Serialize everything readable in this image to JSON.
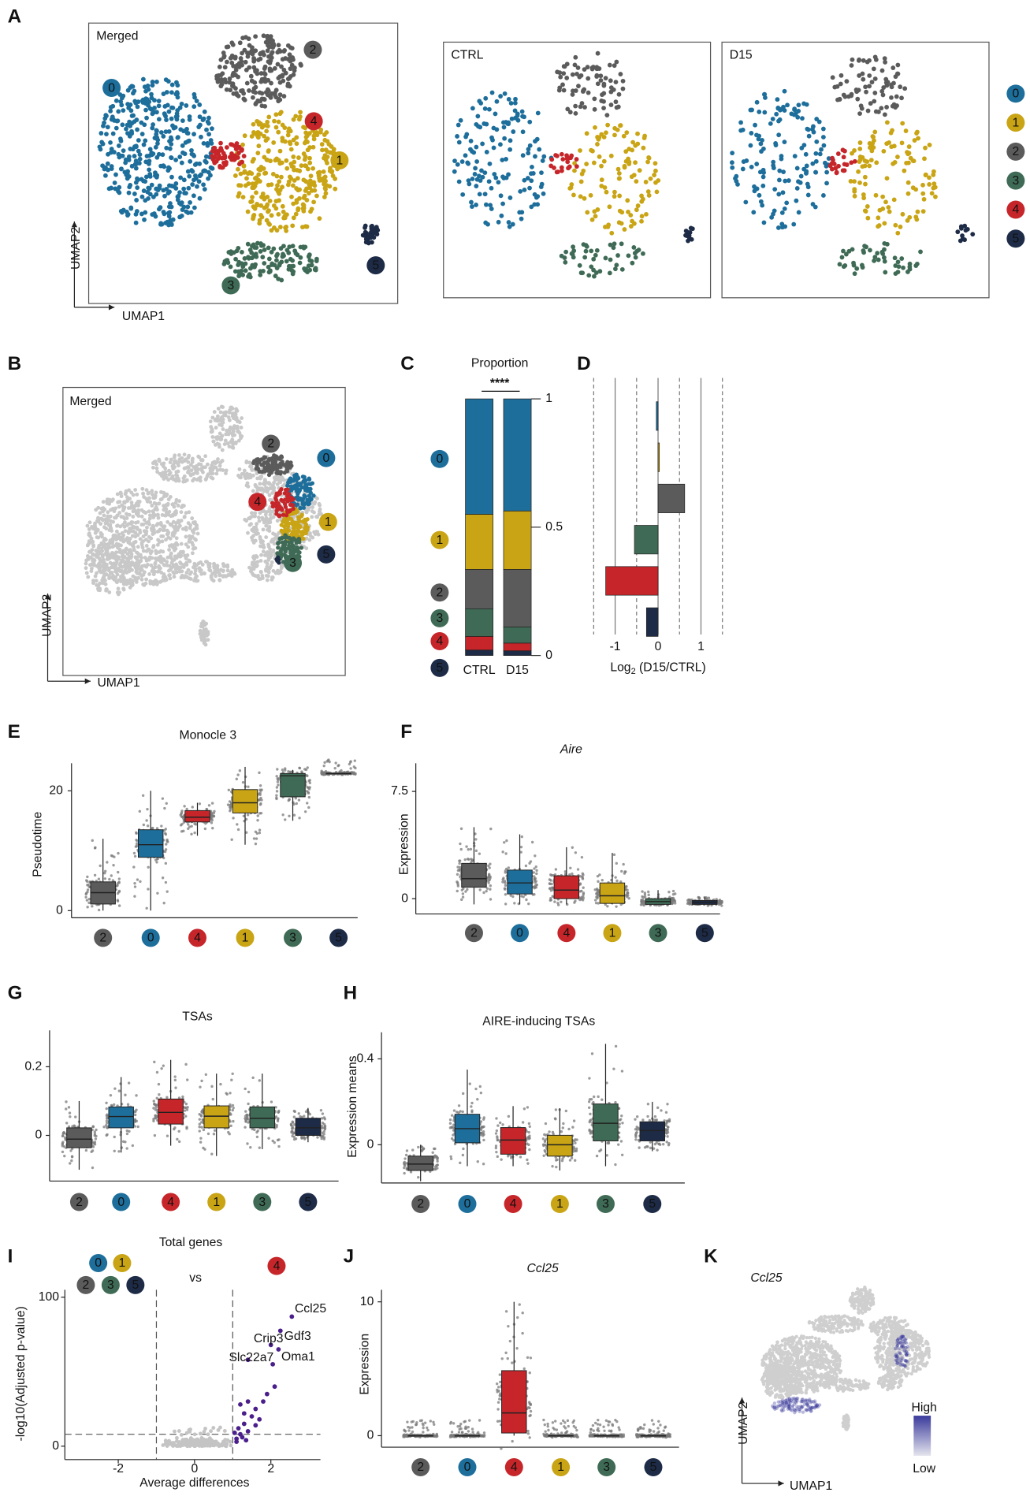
{
  "clusters": {
    "names": [
      "0",
      "1",
      "2",
      "3",
      "4",
      "5"
    ],
    "colors": [
      "#1d6e9b",
      "#c9a414",
      "#5b5b5b",
      "#3f6b56",
      "#c6262a",
      "#1d2b47"
    ]
  },
  "chart_data": [
    {
      "type": "umap",
      "panel": "A",
      "xlabel": "UMAP1",
      "ylabel": "UMAP2",
      "views": [
        {
          "title": "Merged",
          "cluster_labels": [
            "0",
            "2",
            "4",
            "1",
            "3",
            "5"
          ]
        },
        {
          "title": "CTRL"
        },
        {
          "title": "D15"
        }
      ]
    },
    {
      "type": "umap",
      "panel": "B",
      "xlabel": "UMAP1",
      "ylabel": "UMAP2",
      "views": [
        {
          "title": "Merged",
          "cluster_labels": [
            "2",
            "0",
            "4",
            "1",
            "3",
            "5"
          ]
        }
      ]
    },
    {
      "type": "stacked_bar",
      "panel": "C",
      "title": "Proportion",
      "annotation": "****",
      "categories": [
        "CTRL",
        "D15"
      ],
      "series": [
        {
          "name": "0",
          "values": [
            0.45,
            0.437
          ]
        },
        {
          "name": "1",
          "values": [
            0.215,
            0.228
          ]
        },
        {
          "name": "2",
          "values": [
            0.153,
            0.224
          ]
        },
        {
          "name": "3",
          "values": [
            0.108,
            0.063
          ]
        },
        {
          "name": "4",
          "values": [
            0.053,
            0.03
          ]
        },
        {
          "name": "5",
          "values": [
            0.021,
            0.018
          ]
        }
      ],
      "ylim": [
        0,
        1
      ],
      "yticks": [
        0,
        0.5,
        1
      ]
    },
    {
      "type": "hbar",
      "panel": "D",
      "values": [
        -0.04,
        0.03,
        0.62,
        -0.55,
        -1.22,
        -0.27
      ],
      "colors": [
        "#1d6e9b",
        "#c9a414",
        "#5b5b5b",
        "#3f6b56",
        "#c6262a",
        "#1d2b47"
      ],
      "xlim": [
        -1.5,
        1.5
      ],
      "xticks": [
        -1,
        0,
        1
      ],
      "ref_lines": [
        -1.5,
        -0.5,
        0.5,
        1.5
      ],
      "xlabel_parts": [
        "Log",
        "2",
        " (D15/CTRL)"
      ]
    },
    {
      "type": "box",
      "panel": "E",
      "title": "Monocle 3",
      "ylabel": "Pseudotime",
      "categories": [
        "2",
        "0",
        "4",
        "1",
        "3",
        "5"
      ],
      "boxes": [
        {
          "whislo": 0,
          "q1": 1.1,
          "median": 3,
          "q3": 4.8,
          "whishi": 12
        },
        {
          "whislo": 0,
          "q1": 8.9,
          "median": 11,
          "q3": 13.5,
          "whishi": 20
        },
        {
          "whislo": 12.5,
          "q1": 14.8,
          "median": 15.6,
          "q3": 16.7,
          "whishi": 18
        },
        {
          "whislo": 11,
          "q1": 16.3,
          "median": 18,
          "q3": 20.2,
          "whishi": 24
        },
        {
          "whislo": 15,
          "q1": 19,
          "median": 22.5,
          "q3": 22.9,
          "whishi": 23.5
        },
        {
          "whislo": 22.9,
          "q1": 22.9,
          "median": 22.9,
          "q3": 22.9,
          "whishi": 22.9
        }
      ],
      "ylim": [
        -1.2,
        24.6
      ],
      "yticks": [
        0,
        20
      ]
    },
    {
      "type": "box",
      "panel": "F",
      "title": "Aire",
      "title_style": "italic",
      "ylabel": "Expression",
      "categories": [
        "2",
        "0",
        "4",
        "1",
        "3",
        "5"
      ],
      "boxes": [
        {
          "whislo": -0.4,
          "q1": 0.8,
          "median": 1.4,
          "q3": 2.47,
          "whishi": 5
        },
        {
          "whislo": -0.4,
          "q1": 0.33,
          "median": 1.1,
          "q3": 2,
          "whishi": 4.5
        },
        {
          "whislo": -0.4,
          "q1": 0,
          "median": 0.6,
          "q3": 1.6,
          "whishi": 3.6
        },
        {
          "whislo": -0.4,
          "q1": -0.33,
          "median": 0.2,
          "q3": 1.1,
          "whishi": 3.2
        },
        {
          "whislo": -0.4,
          "q1": -0.4,
          "median": -0.2,
          "q3": 0,
          "whishi": 0.6
        },
        {
          "whislo": -0.4,
          "q1": -0.4,
          "median": -0.27,
          "q3": -0.13,
          "whishi": 0.1
        }
      ],
      "ylim": [
        -1.07,
        9.47
      ],
      "yticks": [
        0,
        7.5
      ]
    },
    {
      "type": "box",
      "panel": "G",
      "title": "TSAs",
      "categories": [
        "2",
        "0",
        "4",
        "1",
        "3",
        "5"
      ],
      "boxes": [
        {
          "whislo": -0.1,
          "q1": -0.036,
          "median": -0.011,
          "q3": 0.022,
          "whishi": 0.1
        },
        {
          "whislo": -0.05,
          "q1": 0.022,
          "median": 0.055,
          "q3": 0.083,
          "whishi": 0.17
        },
        {
          "whislo": -0.03,
          "q1": 0.033,
          "median": 0.067,
          "q3": 0.106,
          "whishi": 0.22
        },
        {
          "whislo": -0.06,
          "q1": 0.022,
          "median": 0.056,
          "q3": 0.086,
          "whishi": 0.18
        },
        {
          "whislo": -0.04,
          "q1": 0.022,
          "median": 0.05,
          "q3": 0.083,
          "whishi": 0.18
        },
        {
          "whislo": -0.02,
          "q1": 0,
          "median": 0.022,
          "q3": 0.05,
          "whishi": 0.08
        }
      ],
      "ylim": [
        -0.133,
        0.306
      ],
      "yticks": [
        0,
        0.2
      ]
    },
    {
      "type": "box",
      "panel": "H",
      "title": "AIRE-inducing TSAs",
      "ylabel": "Expression means",
      "categories": [
        "2",
        "0",
        "4",
        "1",
        "3",
        "5"
      ],
      "boxes": [
        {
          "whislo": -0.17,
          "q1": -0.12,
          "median": -0.09,
          "q3": -0.053,
          "whishi": 0
        },
        {
          "whislo": -0.1,
          "q1": 0.009,
          "median": 0.075,
          "q3": 0.142,
          "whishi": 0.35
        },
        {
          "whislo": -0.1,
          "q1": -0.044,
          "median": 0.022,
          "q3": 0.08,
          "whishi": 0.18
        },
        {
          "whislo": -0.12,
          "q1": -0.053,
          "median": 0,
          "q3": 0.044,
          "whishi": 0.17
        },
        {
          "whislo": -0.1,
          "q1": 0.018,
          "median": 0.1,
          "q3": 0.19,
          "whishi": 0.47
        },
        {
          "whislo": -0.03,
          "q1": 0.018,
          "median": 0.066,
          "q3": 0.107,
          "whishi": 0.2
        }
      ],
      "ylim": [
        -0.178,
        0.524
      ],
      "yticks": [
        0,
        0.4
      ]
    },
    {
      "type": "volcano",
      "panel": "I",
      "title": "Total genes",
      "groups": [
        "0",
        "1",
        "2",
        "3",
        "5"
      ],
      "vs": "vs",
      "versus": "4",
      "xlabel": "Average differences",
      "ylabel": "-log10(Adjusted p-value)",
      "xlim": [
        -3.4,
        3.3
      ],
      "ylim": [
        -9,
        105
      ],
      "xticks": [
        -2,
        0,
        2
      ],
      "yticks": [
        0,
        100
      ],
      "thresholds": {
        "x": [
          -1,
          1
        ],
        "y": 8
      },
      "color": "#4a1f8c",
      "points": {
        "x": [
          1.1,
          1.2,
          1.15,
          1.3,
          1.4,
          1.5,
          1.6,
          1.7,
          1.8,
          1.9,
          2.1,
          1.3,
          1.05,
          1.25,
          1.6,
          2.05,
          1.2,
          1.4,
          1.1,
          1.35
        ],
        "y": [
          5,
          8,
          12,
          15,
          10,
          20,
          25,
          18,
          30,
          35,
          40,
          22,
          9,
          6,
          14,
          55,
          28,
          30,
          3,
          4
        ]
      },
      "labeled": {
        "names": [
          "Ccl25",
          "Gdf3",
          "Crip3",
          "Oma1",
          "Slc22a7"
        ],
        "x": [
          2.55,
          2.25,
          2,
          2.2,
          1.4
        ],
        "y": [
          87,
          77.5,
          68,
          65,
          58
        ]
      }
    },
    {
      "type": "box",
      "panel": "J",
      "title": "Ccl25",
      "title_style": "italic",
      "ylabel": "Expression",
      "categories": [
        "2",
        "0",
        "4",
        "1",
        "3",
        "5"
      ],
      "boxes": [
        {
          "whislo": 0,
          "q1": 0,
          "median": 0,
          "q3": 0,
          "whishi": 0
        },
        {
          "whislo": 0,
          "q1": 0,
          "median": 0,
          "q3": 0,
          "whishi": 0
        },
        {
          "whislo": 0,
          "q1": 0.2,
          "median": 1.7,
          "q3": 4.86,
          "whishi": 10
        },
        {
          "whislo": 0,
          "q1": 0,
          "median": 0,
          "q3": 0,
          "whishi": 0
        },
        {
          "whislo": 0,
          "q1": 0,
          "median": 0,
          "q3": 0,
          "whishi": 0
        },
        {
          "whislo": 0,
          "q1": 0,
          "median": 0,
          "q3": 0,
          "whishi": 0
        }
      ],
      "ylim": [
        -0.86,
        10.9
      ],
      "yticks": [
        0,
        10
      ]
    },
    {
      "type": "feature_umap",
      "panel": "K",
      "title": "Ccl25",
      "title_style": "italic",
      "xlabel": "UMAP1",
      "ylabel": "UMAP2",
      "legend": [
        "High",
        "Low"
      ],
      "high_color": "#3a3a9c",
      "low_color": "#e4e4ee"
    }
  ]
}
